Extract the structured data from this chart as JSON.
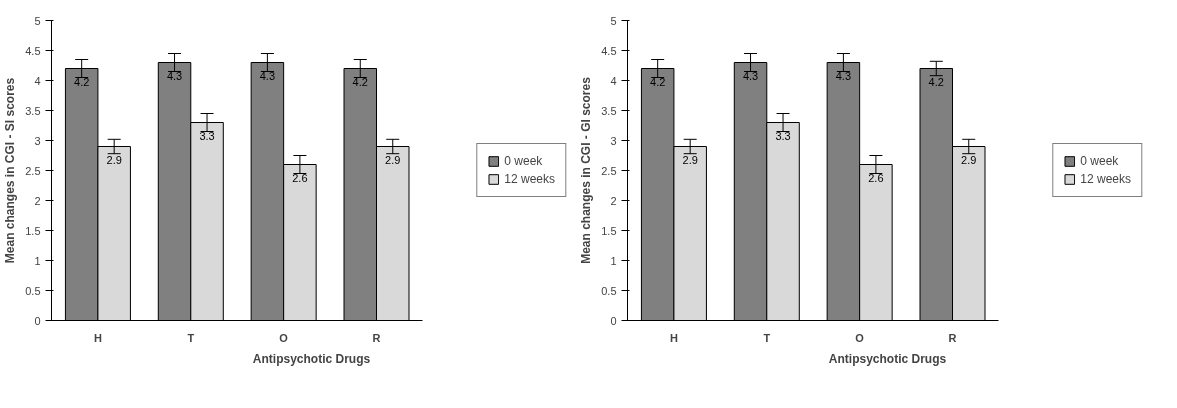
{
  "chart_data": [
    {
      "type": "bar",
      "xlabel": "Antipsychotic Drugs",
      "ylabel": "Mean changes in CGI - SI scores",
      "categories": [
        "H",
        "T",
        "O",
        "R"
      ],
      "ylim": [
        0,
        5
      ],
      "yticks": [
        0,
        0.5,
        1,
        1.5,
        2,
        2.5,
        3,
        3.5,
        4,
        4.5,
        5
      ],
      "legend": "right",
      "data_labels": true,
      "series": [
        {
          "name": "0 week",
          "color": "#808080",
          "values": [
            4.2,
            4.3,
            4.3,
            4.2
          ],
          "errors": [
            0.15,
            0.15,
            0.15,
            0.15
          ]
        },
        {
          "name": "12 weeks",
          "color": "#d9d9d9",
          "values": [
            2.9,
            3.3,
            2.6,
            2.9
          ],
          "errors": [
            0.12,
            0.15,
            0.15,
            0.12
          ]
        }
      ]
    },
    {
      "type": "bar",
      "xlabel": "Antipsychotic Drugs",
      "ylabel": "Mean changes in CGI - GI scores",
      "categories": [
        "H",
        "T",
        "O",
        "R"
      ],
      "ylim": [
        0,
        5
      ],
      "yticks": [
        0,
        0.5,
        1,
        1.5,
        2,
        2.5,
        3,
        3.5,
        4,
        4.5,
        5
      ],
      "legend": "right",
      "data_labels": true,
      "series": [
        {
          "name": "0 week",
          "color": "#808080",
          "values": [
            4.2,
            4.3,
            4.3,
            4.2
          ],
          "errors": [
            0.15,
            0.15,
            0.15,
            0.12
          ]
        },
        {
          "name": "12 weeks",
          "color": "#d9d9d9",
          "values": [
            2.9,
            3.3,
            2.6,
            2.9
          ],
          "errors": [
            0.12,
            0.15,
            0.15,
            0.12
          ]
        }
      ]
    }
  ]
}
